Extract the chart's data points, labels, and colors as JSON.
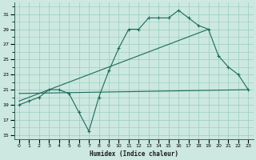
{
  "xlabel": "Humidex (Indice chaleur)",
  "bg_color": "#cce8e0",
  "grid_color": "#99ccbb",
  "line_color": "#1a6b5a",
  "xlim": [
    -0.5,
    23.5
  ],
  "ylim": [
    14.5,
    32.5
  ],
  "xticks": [
    0,
    1,
    2,
    3,
    4,
    5,
    6,
    7,
    8,
    9,
    10,
    11,
    12,
    13,
    14,
    15,
    16,
    17,
    18,
    19,
    20,
    21,
    22,
    23
  ],
  "yticks": [
    15,
    17,
    19,
    21,
    23,
    25,
    27,
    29,
    31
  ],
  "series1_x": [
    0,
    1,
    2,
    3,
    4,
    5,
    6,
    7,
    8,
    9,
    10,
    11,
    12,
    13,
    14,
    15,
    16,
    17,
    18,
    19,
    20,
    21,
    22,
    23
  ],
  "series1_y": [
    19.0,
    19.5,
    20.0,
    21.0,
    21.0,
    20.5,
    18.0,
    15.5,
    20.0,
    23.5,
    26.5,
    29.0,
    29.0,
    30.5,
    30.5,
    30.5,
    31.5,
    30.5,
    29.5,
    29.0,
    25.5,
    24.0,
    23.0,
    21.0
  ],
  "series2_x": [
    0,
    19
  ],
  "series2_y": [
    19.5,
    29.0
  ],
  "series3_x": [
    0,
    23
  ],
  "series3_y": [
    20.5,
    21.0
  ]
}
